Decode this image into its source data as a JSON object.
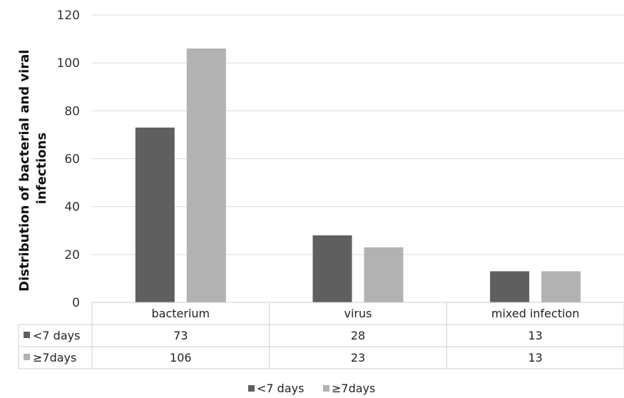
{
  "chart_data": {
    "type": "bar",
    "categories": [
      "bacterium",
      "virus",
      "mixed infection"
    ],
    "series": [
      {
        "name": "<7 days",
        "values": [
          73,
          28,
          13
        ],
        "color": "#5f5f5f"
      },
      {
        "name": "≥7days",
        "values": [
          106,
          23,
          13
        ],
        "color": "#b2b2b2"
      }
    ],
    "ylabel": "Distribution of bacterial and viral infections",
    "ylabel_lines": [
      "Distribution of bacterial and viral",
      "infections"
    ],
    "xlabel": "",
    "ylim": [
      0,
      120
    ],
    "yticks": [
      0,
      20,
      40,
      60,
      80,
      100,
      120
    ],
    "grid": true,
    "legend_position": "bottom",
    "data_table": true
  }
}
